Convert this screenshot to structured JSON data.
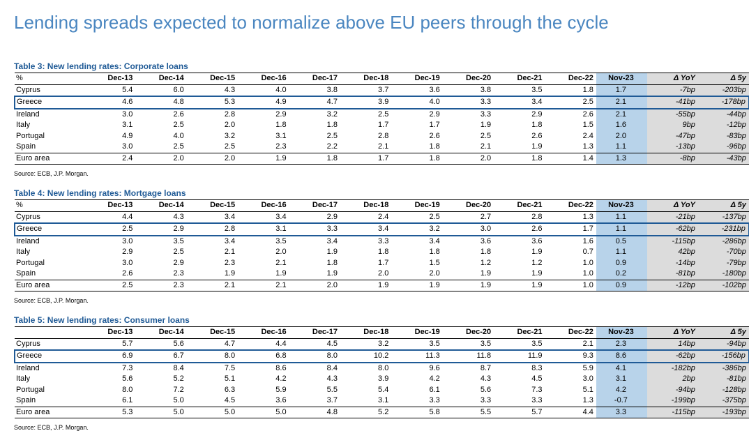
{
  "title": "Lending spreads expected to normalize above EU peers through the cycle",
  "colors": {
    "title": "#4a86c0",
    "caption": "#1f5a96",
    "highlight_border": "#1f5a96",
    "nov_fill": "#b8d3ea",
    "delta_fill": "#dcdcdc"
  },
  "tables": [
    {
      "caption": "Table 3: New lending rates: Corporate loans",
      "first_header": "%",
      "headers": [
        "Dec-13",
        "Dec-14",
        "Dec-15",
        "Dec-16",
        "Dec-17",
        "Dec-18",
        "Dec-19",
        "Dec-20",
        "Dec-21",
        "Dec-22",
        "Nov-23",
        "Δ YoY",
        "Δ 5y"
      ],
      "rows": [
        {
          "label": "Cyprus",
          "values": [
            "5.4",
            "6.0",
            "4.3",
            "4.0",
            "3.8",
            "3.7",
            "3.6",
            "3.8",
            "3.5",
            "1.8",
            "1.7",
            "-7bp",
            "-203bp"
          ]
        },
        {
          "label": "Greece",
          "values": [
            "4.6",
            "4.8",
            "5.3",
            "4.9",
            "4.7",
            "3.9",
            "4.0",
            "3.3",
            "3.4",
            "2.5",
            "2.1",
            "-41bp",
            "-178bp"
          ]
        },
        {
          "label": "Ireland",
          "values": [
            "3.0",
            "2.6",
            "2.8",
            "2.9",
            "3.2",
            "2.5",
            "2.9",
            "3.3",
            "2.9",
            "2.6",
            "2.1",
            "-55bp",
            "-44bp"
          ]
        },
        {
          "label": "Italy",
          "values": [
            "3.1",
            "2.5",
            "2.0",
            "1.8",
            "1.8",
            "1.7",
            "1.7",
            "1.9",
            "1.8",
            "1.5",
            "1.6",
            "9bp",
            "-12bp"
          ]
        },
        {
          "label": "Portugal",
          "values": [
            "4.9",
            "4.0",
            "3.2",
            "3.1",
            "2.5",
            "2.8",
            "2.6",
            "2.5",
            "2.6",
            "2.4",
            "2.0",
            "-47bp",
            "-83bp"
          ]
        },
        {
          "label": "Spain",
          "values": [
            "3.0",
            "2.5",
            "2.5",
            "2.3",
            "2.2",
            "2.1",
            "1.8",
            "2.1",
            "1.9",
            "1.3",
            "1.1",
            "-13bp",
            "-96bp"
          ]
        },
        {
          "label": "Euro area",
          "values": [
            "2.4",
            "2.0",
            "2.0",
            "1.9",
            "1.8",
            "1.7",
            "1.8",
            "2.0",
            "1.8",
            "1.4",
            "1.3",
            "-8bp",
            "-43bp"
          ]
        }
      ],
      "source": "Source: ECB, J.P. Morgan."
    },
    {
      "caption": "Table 4: New lending rates: Mortgage loans",
      "first_header": "%",
      "headers": [
        "Dec-13",
        "Dec-14",
        "Dec-15",
        "Dec-16",
        "Dec-17",
        "Dec-18",
        "Dec-19",
        "Dec-20",
        "Dec-21",
        "Dec-22",
        "Nov-23",
        "Δ YoY",
        "Δ 5y"
      ],
      "rows": [
        {
          "label": "Cyprus",
          "values": [
            "4.4",
            "4.3",
            "3.4",
            "3.4",
            "2.9",
            "2.4",
            "2.5",
            "2.7",
            "2.8",
            "1.3",
            "1.1",
            "-21bp",
            "-137bp"
          ]
        },
        {
          "label": "Greece",
          "values": [
            "2.5",
            "2.9",
            "2.8",
            "3.1",
            "3.3",
            "3.4",
            "3.2",
            "3.0",
            "2.6",
            "1.7",
            "1.1",
            "-62bp",
            "-231bp"
          ]
        },
        {
          "label": "Ireland",
          "values": [
            "3.0",
            "3.5",
            "3.4",
            "3.5",
            "3.4",
            "3.3",
            "3.4",
            "3.6",
            "3.6",
            "1.6",
            "0.5",
            "-115bp",
            "-286bp"
          ]
        },
        {
          "label": "Italy",
          "values": [
            "2.9",
            "2.5",
            "2.1",
            "2.0",
            "1.9",
            "1.8",
            "1.8",
            "1.8",
            "1.9",
            "0.7",
            "1.1",
            "42bp",
            "-70bp"
          ]
        },
        {
          "label": "Portugal",
          "values": [
            "3.0",
            "2.9",
            "2.3",
            "2.1",
            "1.8",
            "1.7",
            "1.5",
            "1.2",
            "1.2",
            "1.0",
            "0.9",
            "-14bp",
            "-79bp"
          ]
        },
        {
          "label": "Spain",
          "values": [
            "2.6",
            "2.3",
            "1.9",
            "1.9",
            "1.9",
            "2.0",
            "2.0",
            "1.9",
            "1.9",
            "1.0",
            "0.2",
            "-81bp",
            "-180bp"
          ]
        },
        {
          "label": "Euro area",
          "values": [
            "2.5",
            "2.3",
            "2.1",
            "2.1",
            "2.0",
            "1.9",
            "1.9",
            "1.9",
            "1.9",
            "1.0",
            "0.9",
            "-12bp",
            "-102bp"
          ]
        }
      ],
      "source": "Source: ECB, J.P. Morgan."
    },
    {
      "caption": "Table 5: New lending rates: Consumer loans",
      "first_header": "",
      "headers": [
        "Dec-13",
        "Dec-14",
        "Dec-15",
        "Dec-16",
        "Dec-17",
        "Dec-18",
        "Dec-19",
        "Dec-20",
        "Dec-21",
        "Dec-22",
        "Nov-23",
        "Δ YoY",
        "Δ 5y"
      ],
      "rows": [
        {
          "label": "Cyprus",
          "values": [
            "5.7",
            "5.6",
            "4.7",
            "4.4",
            "4.5",
            "3.2",
            "3.5",
            "3.5",
            "3.5",
            "2.1",
            "2.3",
            "14bp",
            "-94bp"
          ]
        },
        {
          "label": "Greece",
          "values": [
            "6.9",
            "6.7",
            "8.0",
            "6.8",
            "8.0",
            "10.2",
            "11.3",
            "11.8",
            "11.9",
            "9.3",
            "8.6",
            "-62bp",
            "-156bp"
          ]
        },
        {
          "label": "Ireland",
          "values": [
            "7.3",
            "8.4",
            "7.5",
            "8.6",
            "8.4",
            "8.0",
            "9.6",
            "8.7",
            "8.3",
            "5.9",
            "4.1",
            "-182bp",
            "-386bp"
          ]
        },
        {
          "label": "Italy",
          "values": [
            "5.6",
            "5.2",
            "5.1",
            "4.2",
            "4.3",
            "3.9",
            "4.2",
            "4.3",
            "4.5",
            "3.0",
            "3.1",
            "2bp",
            "-81bp"
          ]
        },
        {
          "label": "Portugal",
          "values": [
            "8.0",
            "7.2",
            "6.3",
            "5.9",
            "5.5",
            "5.4",
            "6.1",
            "5.6",
            "7.3",
            "5.1",
            "4.2",
            "-94bp",
            "-128bp"
          ]
        },
        {
          "label": "Spain",
          "values": [
            "6.1",
            "5.0",
            "4.5",
            "3.6",
            "3.7",
            "3.1",
            "3.3",
            "3.3",
            "3.3",
            "1.3",
            "-0.7",
            "-199bp",
            "-375bp"
          ]
        },
        {
          "label": "Euro area",
          "values": [
            "5.3",
            "5.0",
            "5.0",
            "5.0",
            "4.8",
            "5.2",
            "5.8",
            "5.5",
            "5.7",
            "4.4",
            "3.3",
            "-115bp",
            "-193bp"
          ]
        }
      ],
      "source": "Source: ECB, J.P. Morgan."
    }
  ]
}
